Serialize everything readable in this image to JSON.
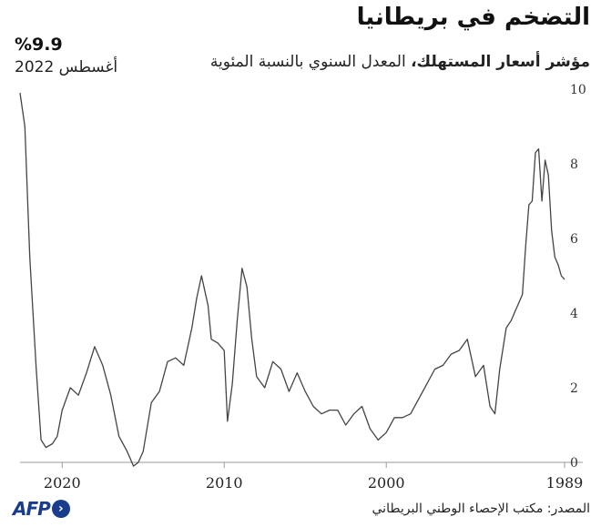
{
  "header": {
    "title": "التضخم في بريطانيا",
    "subtitle_bold": "مؤشر أسعار المستهلك،",
    "subtitle_rest": " المعدل السنوي بالنسبة المئوية",
    "latest_value": "%9.9",
    "latest_date": "أغسطس 2022"
  },
  "footer": {
    "source": "المصدر: مكتب الإحصاء الوطني البريطاني",
    "logo_text": "AFP"
  },
  "chart_data": {
    "type": "line",
    "title": "التضخم في بريطانيا",
    "x_direction": "right-to-left",
    "x_range": [
      1989.0,
      2022.6
    ],
    "y_range": [
      0,
      10
    ],
    "y_ticks": [
      "0",
      "2",
      "4",
      "6",
      "8",
      "10"
    ],
    "x_ticks": [
      "1989",
      "2000",
      "2010",
      "2020"
    ],
    "grid": false,
    "series": [
      {
        "x": [
          1989.0,
          1989.2,
          1989.4,
          1989.6,
          1989.8,
          1990.0,
          1990.2,
          1990.4,
          1990.6,
          1990.8,
          1991.0,
          1991.2,
          1991.4,
          1991.6,
          1991.8,
          1992.0,
          1992.3,
          1992.6,
          1993.0,
          1993.3,
          1993.6,
          1994.0,
          1994.5,
          1995.0,
          1995.5,
          1996.0,
          1996.5,
          1997.0,
          1997.5,
          1998.0,
          1998.5,
          1999.0,
          1999.5,
          2000.0,
          2000.5,
          2001.0,
          2001.5,
          2002.0,
          2002.5,
          2003.0,
          2003.5,
          2004.0,
          2004.5,
          2005.0,
          2005.5,
          2006.0,
          2006.5,
          2007.0,
          2007.5,
          2008.0,
          2008.3,
          2008.6,
          2008.9,
          2009.2,
          2009.5,
          2009.8,
          2010.0,
          2010.4,
          2010.8,
          2011.0,
          2011.4,
          2011.7,
          2012.0,
          2012.5,
          2013.0,
          2013.5,
          2014.0,
          2014.5,
          2015.0,
          2015.3,
          2015.6,
          2016.0,
          2016.5,
          2017.0,
          2017.5,
          2018.0,
          2018.5,
          2019.0,
          2019.5,
          2020.0,
          2020.3,
          2020.6,
          2021.0,
          2021.3,
          2021.6,
          2022.0,
          2022.3,
          2022.6
        ],
        "y": [
          4.9,
          5.0,
          5.3,
          5.5,
          6.2,
          7.7,
          8.1,
          7.0,
          8.4,
          8.3,
          7.0,
          6.9,
          5.8,
          4.5,
          4.3,
          4.1,
          3.8,
          3.6,
          2.5,
          1.3,
          1.5,
          2.6,
          2.3,
          3.3,
          3.0,
          2.9,
          2.6,
          2.5,
          2.1,
          1.7,
          1.3,
          1.2,
          1.2,
          0.8,
          0.6,
          0.9,
          1.5,
          1.3,
          1.0,
          1.4,
          1.4,
          1.3,
          1.5,
          1.9,
          2.4,
          1.9,
          2.5,
          2.7,
          2.0,
          2.3,
          3.3,
          4.7,
          5.2,
          3.8,
          2.1,
          1.1,
          3.0,
          3.2,
          3.3,
          4.2,
          5.0,
          4.4,
          3.6,
          2.6,
          2.8,
          2.7,
          1.9,
          1.6,
          0.3,
          0.0,
          -0.1,
          0.3,
          0.7,
          1.8,
          2.6,
          3.1,
          2.4,
          1.8,
          2.0,
          1.4,
          0.7,
          0.5,
          0.4,
          0.6,
          2.5,
          5.5,
          9.0,
          9.9
        ]
      }
    ]
  }
}
